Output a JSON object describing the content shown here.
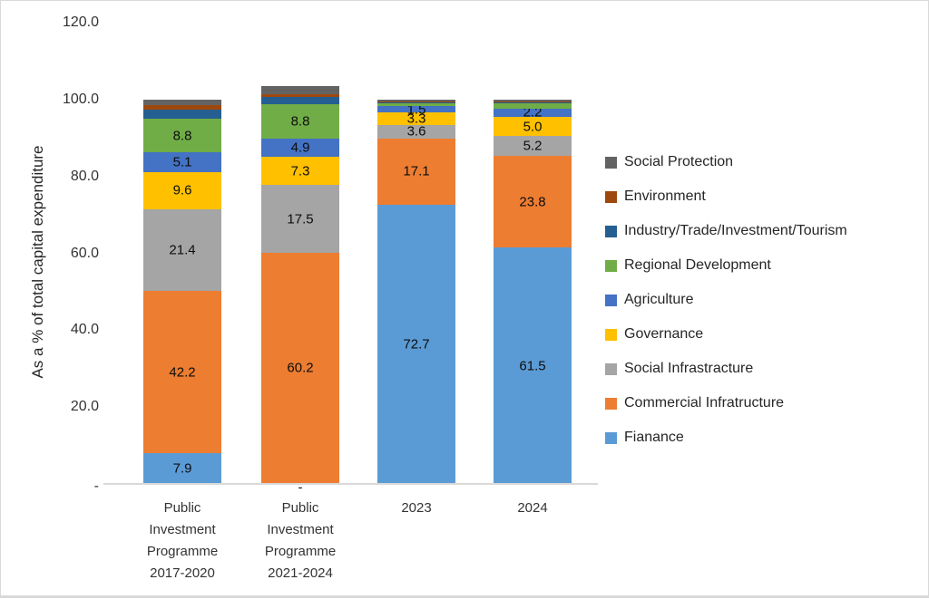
{
  "chart_data": {
    "type": "bar",
    "stacked": true,
    "title": "",
    "xlabel": "",
    "ylabel": "As a % of total capital expenditure",
    "ylim": [
      0,
      120
    ],
    "grid": false,
    "legend_position": "right",
    "yticks": [
      {
        "value": 0,
        "label": "-"
      },
      {
        "value": 20,
        "label": "20.0"
      },
      {
        "value": 40,
        "label": "40.0"
      },
      {
        "value": 60,
        "label": "60.0"
      },
      {
        "value": 80,
        "label": "80.0"
      },
      {
        "value": 100,
        "label": "100.0"
      },
      {
        "value": 120,
        "label": "120.0"
      }
    ],
    "categories": [
      "Public Investment Programme 2017-2020",
      "Public Investment Programme 2021-2024",
      "2023",
      "2024"
    ],
    "category_lines": [
      [
        "Public",
        "Investment",
        "Programme",
        "2017-2020"
      ],
      [
        "Public",
        "Investment",
        "Programme",
        "2021-2024"
      ],
      [
        "2023"
      ],
      [
        "2024"
      ]
    ],
    "series": [
      {
        "name": "Fianance",
        "color": "#5B9BD5",
        "values": [
          7.9,
          0.0,
          72.7,
          61.5
        ],
        "labels": [
          "7.9",
          "-",
          "72.7",
          "61.5"
        ]
      },
      {
        "name": "Commercial Infratructure",
        "color": "#ED7D31",
        "values": [
          42.2,
          60.2,
          17.1,
          23.8
        ],
        "labels": [
          "42.2",
          "60.2",
          "17.1",
          "23.8"
        ]
      },
      {
        "name": "Social Infrastracture",
        "color": "#A5A5A5",
        "values": [
          21.4,
          17.5,
          3.6,
          5.2
        ],
        "labels": [
          "21.4",
          "17.5",
          "3.6",
          "5.2"
        ]
      },
      {
        "name": "Governance",
        "color": "#FFC000",
        "values": [
          9.6,
          7.3,
          3.3,
          5.0
        ],
        "labels": [
          "9.6",
          "7.3",
          "3.3",
          "5.0"
        ]
      },
      {
        "name": "Agriculture",
        "color": "#4472C4",
        "values": [
          5.1,
          4.9,
          1.5,
          2.2
        ],
        "labels": [
          "5.1",
          "4.9",
          "1.5",
          "2.2"
        ]
      },
      {
        "name": "Regional Development",
        "color": "#70AD47",
        "values": [
          8.8,
          8.8,
          0.8,
          1.3
        ],
        "labels": [
          "8.8",
          "8.8",
          "",
          ""
        ]
      },
      {
        "name": "Industry/Trade/Investment/Tourism",
        "color": "#255E91",
        "values": [
          2.3,
          1.9,
          0.4,
          0.4
        ],
        "labels": [
          "",
          "",
          "",
          ""
        ]
      },
      {
        "name": "Environment",
        "color": "#9E480E",
        "values": [
          1.3,
          0.8,
          0.1,
          0.1
        ],
        "labels": [
          "",
          "",
          "",
          ""
        ]
      },
      {
        "name": "Social Protection",
        "color": "#636363",
        "values": [
          1.4,
          2.2,
          0.5,
          0.5
        ],
        "labels": [
          "",
          "",
          "",
          ""
        ]
      }
    ]
  }
}
